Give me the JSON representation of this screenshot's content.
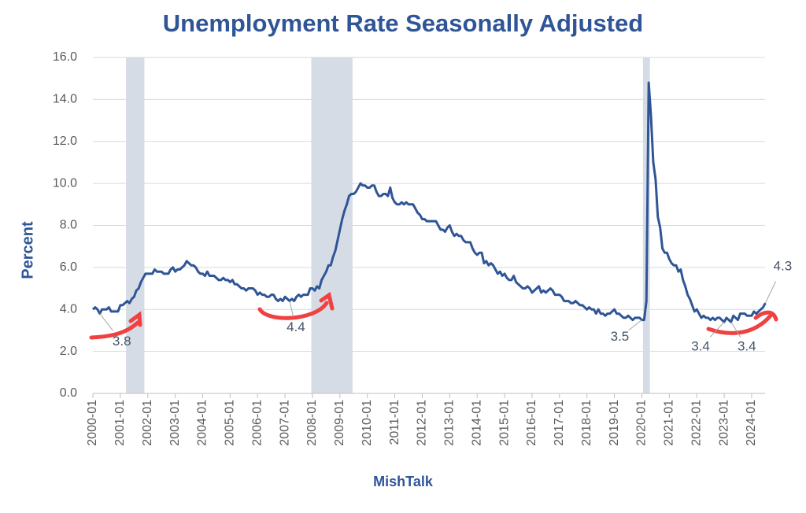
{
  "chart_data": {
    "type": "line",
    "title": "Unemployment Rate Seasonally Adjusted",
    "y_label": "Percent",
    "x_label": "MishTalk",
    "categories": [
      "2000-01",
      null,
      null,
      null,
      null,
      null,
      null,
      null,
      null,
      null,
      null,
      null,
      "2001-01",
      null,
      null,
      null,
      null,
      null,
      null,
      null,
      null,
      null,
      null,
      null,
      "2002-01",
      null,
      null,
      null,
      null,
      null,
      null,
      null,
      null,
      null,
      null,
      null,
      "2003-01",
      null,
      null,
      null,
      null,
      null,
      null,
      null,
      null,
      null,
      null,
      null,
      "2004-01",
      null,
      null,
      null,
      null,
      null,
      null,
      null,
      null,
      null,
      null,
      null,
      "2005-01",
      null,
      null,
      null,
      null,
      null,
      null,
      null,
      null,
      null,
      null,
      null,
      "2006-01",
      null,
      null,
      null,
      null,
      null,
      null,
      null,
      null,
      null,
      null,
      null,
      "2007-01",
      null,
      null,
      null,
      null,
      null,
      null,
      null,
      null,
      null,
      null,
      null,
      "2008-01",
      null,
      null,
      null,
      null,
      null,
      null,
      null,
      null,
      null,
      null,
      null,
      "2009-01",
      null,
      null,
      null,
      null,
      null,
      null,
      null,
      null,
      null,
      null,
      null,
      "2010-01",
      null,
      null,
      null,
      null,
      null,
      null,
      null,
      null,
      null,
      null,
      null,
      "2011-01",
      null,
      null,
      null,
      null,
      null,
      null,
      null,
      null,
      null,
      null,
      null,
      "2012-01",
      null,
      null,
      null,
      null,
      null,
      null,
      null,
      null,
      null,
      null,
      null,
      "2013-01",
      null,
      null,
      null,
      null,
      null,
      null,
      null,
      null,
      null,
      null,
      null,
      "2014-01",
      null,
      null,
      null,
      null,
      null,
      null,
      null,
      null,
      null,
      null,
      null,
      "2015-01",
      null,
      null,
      null,
      null,
      null,
      null,
      null,
      null,
      null,
      null,
      null,
      "2016-01",
      null,
      null,
      null,
      null,
      null,
      null,
      null,
      null,
      null,
      null,
      null,
      "2017-01",
      null,
      null,
      null,
      null,
      null,
      null,
      null,
      null,
      null,
      null,
      null,
      "2018-01",
      null,
      null,
      null,
      null,
      null,
      null,
      null,
      null,
      null,
      null,
      null,
      "2019-01",
      null,
      null,
      null,
      null,
      null,
      null,
      null,
      null,
      null,
      null,
      null,
      "2020-01",
      null,
      null,
      null,
      null,
      null,
      null,
      null,
      null,
      null,
      null,
      null,
      "2021-01",
      null,
      null,
      null,
      null,
      null,
      null,
      null,
      null,
      null,
      null,
      null,
      "2022-01",
      null,
      null,
      null,
      null,
      null,
      null,
      null,
      null,
      null,
      null,
      null,
      "2023-01",
      null,
      null,
      null,
      null,
      null,
      null,
      null,
      null,
      null,
      null,
      null,
      "2024-01",
      null,
      null,
      null,
      null,
      null,
      null
    ],
    "series": [
      {
        "color": "#2f5597",
        "values": [
          4.0,
          4.1,
          4.0,
          3.8,
          4.0,
          4.0,
          4.0,
          4.1,
          3.9,
          3.9,
          3.9,
          3.9,
          4.2,
          4.2,
          4.3,
          4.4,
          4.3,
          4.5,
          4.6,
          4.9,
          5.0,
          5.3,
          5.5,
          5.7,
          5.7,
          5.7,
          5.7,
          5.9,
          5.8,
          5.8,
          5.8,
          5.7,
          5.7,
          5.7,
          5.9,
          6.0,
          5.8,
          5.9,
          5.9,
          6.0,
          6.1,
          6.3,
          6.2,
          6.1,
          6.1,
          6.0,
          5.8,
          5.7,
          5.7,
          5.6,
          5.8,
          5.6,
          5.6,
          5.6,
          5.5,
          5.4,
          5.4,
          5.5,
          5.4,
          5.4,
          5.3,
          5.4,
          5.2,
          5.2,
          5.1,
          5.0,
          5.0,
          4.9,
          5.0,
          5.0,
          5.0,
          4.9,
          4.7,
          4.8,
          4.7,
          4.7,
          4.6,
          4.6,
          4.7,
          4.7,
          4.5,
          4.4,
          4.5,
          4.4,
          4.6,
          4.5,
          4.4,
          4.5,
          4.4,
          4.6,
          4.7,
          4.6,
          4.7,
          4.7,
          4.7,
          5.0,
          5.0,
          4.9,
          5.1,
          5.0,
          5.4,
          5.6,
          5.8,
          6.1,
          6.1,
          6.5,
          6.8,
          7.3,
          7.8,
          8.3,
          8.7,
          9.0,
          9.4,
          9.5,
          9.5,
          9.6,
          9.8,
          10.0,
          9.9,
          9.9,
          9.8,
          9.8,
          9.9,
          9.9,
          9.6,
          9.4,
          9.4,
          9.5,
          9.5,
          9.4,
          9.8,
          9.3,
          9.1,
          9.0,
          9.0,
          9.1,
          9.0,
          9.1,
          9.0,
          9.0,
          9.0,
          8.8,
          8.6,
          8.5,
          8.3,
          8.3,
          8.2,
          8.2,
          8.2,
          8.2,
          8.2,
          8.0,
          7.8,
          7.8,
          7.7,
          7.9,
          8.0,
          7.7,
          7.5,
          7.6,
          7.5,
          7.5,
          7.3,
          7.2,
          7.2,
          7.2,
          6.9,
          6.7,
          6.6,
          6.7,
          6.7,
          6.2,
          6.3,
          6.1,
          6.2,
          6.1,
          5.9,
          5.7,
          5.8,
          5.6,
          5.7,
          5.5,
          5.4,
          5.4,
          5.6,
          5.3,
          5.2,
          5.1,
          5.0,
          5.0,
          5.1,
          5.0,
          4.8,
          4.9,
          5.0,
          5.1,
          4.8,
          4.9,
          4.8,
          4.9,
          5.0,
          4.9,
          4.7,
          4.7,
          4.7,
          4.6,
          4.4,
          4.4,
          4.4,
          4.3,
          4.3,
          4.4,
          4.3,
          4.2,
          4.2,
          4.1,
          4.0,
          4.1,
          4.0,
          4.0,
          3.8,
          4.0,
          3.8,
          3.8,
          3.7,
          3.8,
          3.8,
          3.9,
          4.0,
          3.8,
          3.8,
          3.7,
          3.6,
          3.6,
          3.7,
          3.6,
          3.5,
          3.6,
          3.6,
          3.6,
          3.5,
          3.5,
          4.4,
          14.8,
          13.2,
          11.0,
          10.2,
          8.4,
          7.9,
          6.9,
          6.7,
          6.7,
          6.4,
          6.2,
          6.1,
          6.1,
          5.8,
          5.9,
          5.4,
          5.1,
          4.7,
          4.5,
          4.2,
          3.9,
          4.0,
          3.8,
          3.6,
          3.7,
          3.6,
          3.6,
          3.5,
          3.6,
          3.5,
          3.6,
          3.6,
          3.5,
          3.4,
          3.6,
          3.5,
          3.4,
          3.7,
          3.6,
          3.5,
          3.8,
          3.8,
          3.8,
          3.7,
          3.7,
          3.7,
          3.9,
          3.8,
          3.9,
          4.0,
          4.1,
          4.3
        ]
      }
    ],
    "annotated_points": [
      3,
      86,
      240,
      276,
      279,
      294
    ],
    "shaded_ranges": [
      [
        15,
        22
      ],
      [
        96,
        113
      ],
      [
        241,
        243
      ]
    ],
    "ylim": [
      0,
      16
    ],
    "yticks": [
      {
        "value": 0,
        "label": "0.0"
      },
      {
        "value": 2,
        "label": "2.0"
      },
      {
        "value": 4,
        "label": "4.0"
      },
      {
        "value": 6,
        "label": "6.0"
      },
      {
        "value": 8,
        "label": "8.0"
      },
      {
        "value": 10,
        "label": "10.0"
      },
      {
        "value": 12,
        "label": "12.0"
      },
      {
        "value": 14,
        "label": "14.0"
      },
      {
        "value": 16,
        "label": "16.0"
      }
    ],
    "grid": true
  }
}
